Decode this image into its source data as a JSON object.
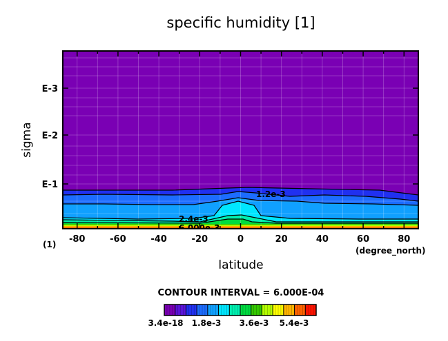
{
  "chart_data": {
    "type": "heatmap",
    "title": "specific humidity [1]",
    "xlabel": "latitude",
    "ylabel": "sigma",
    "x_unit": "(degree_north)",
    "y_unit": "(1)",
    "x_ticks": [
      "-80",
      "-60",
      "-40",
      "-20",
      "0",
      "20",
      "40",
      "60",
      "80"
    ],
    "x_tick_values": [
      -80,
      -60,
      -40,
      -20,
      0,
      20,
      40,
      60,
      80
    ],
    "xlim": [
      -87,
      87
    ],
    "y_ticks": [
      "E-3",
      "E-2",
      "E-1"
    ],
    "y_scale": "log",
    "grid": true,
    "contour_interval_label": "CONTOUR INTERVAL = 6.000E-04",
    "contour_labels": [
      "1.2e-3",
      "2.4e-3",
      "6.000e-3"
    ],
    "colorbar": {
      "tick_labels": [
        "3.4e-18",
        "1.8e-3",
        "3.6e-3",
        "5.4e-3"
      ],
      "colors": [
        "#7a00b4",
        "#5a14d8",
        "#2030f0",
        "#1c6cff",
        "#10a0ff",
        "#00e6ff",
        "#00f0b0",
        "#00dc40",
        "#34c800",
        "#b4ff00",
        "#ffff00",
        "#ffb400",
        "#ff6400",
        "#ff1400"
      ]
    }
  }
}
